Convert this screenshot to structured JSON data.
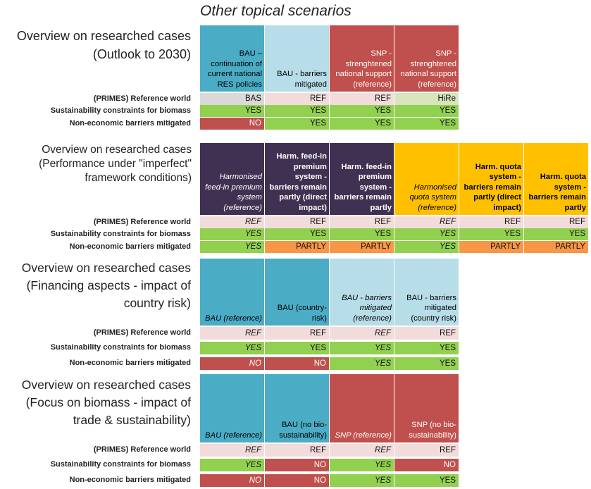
{
  "title": "Other topical scenarios",
  "colors": {
    "teal": "#4bacc6",
    "lightblue": "#b7dde8",
    "red": "#c0504d",
    "purple": "#403152",
    "orange": "#ffc000",
    "pink": "#f2dcdb",
    "grey": "#d9d9d9",
    "lightgreen": "#d7e4bc",
    "green": "#92d050",
    "darkorange": "#f79646"
  },
  "row_labels": {
    "ref": "(PRIMES) Reference world",
    "sust": "Sustainability constraints for biomass",
    "barr": "Non-economic barriers mitigated"
  },
  "sections": [
    {
      "title": "Overview on researched cases (Outlook to 2030)",
      "headers": [
        {
          "text": "BAU – continuation of current national RES policies",
          "color": "teal"
        },
        {
          "text": "BAU - barriers mitigated",
          "color": "lightblue"
        },
        {
          "text": "SNP - strenghtened national support (reference)",
          "color": "red"
        },
        {
          "text": "SNP - strenghtened national support (reference)",
          "color": "red"
        }
      ],
      "ref": [
        {
          "v": "BAS",
          "c": "grey"
        },
        {
          "v": "REF",
          "c": "pink"
        },
        {
          "v": "REF",
          "c": "pink"
        },
        {
          "v": "HiRe",
          "c": "lightgreen"
        }
      ],
      "sust": [
        {
          "v": "YES",
          "c": "green"
        },
        {
          "v": "YES",
          "c": "green"
        },
        {
          "v": "YES",
          "c": "green"
        },
        {
          "v": "YES",
          "c": "green"
        }
      ],
      "barr": [
        {
          "v": "NO",
          "c": "red"
        },
        {
          "v": "YES",
          "c": "green"
        },
        {
          "v": "YES",
          "c": "green"
        },
        {
          "v": "YES",
          "c": "green"
        }
      ]
    },
    {
      "title": "Overview on researched cases (Performance under \"imperfect\" framework conditions)",
      "headers": [
        {
          "text": "Harmonised feed-in premium system (reference)",
          "color": "purple"
        },
        {
          "text": "Harm. feed-in premium system - barriers remain partly (direct impact)",
          "color": "purple"
        },
        {
          "text": "Harm. feed-in premium system - barriers remain partly",
          "color": "purple"
        },
        {
          "text": "Harmonised quota system (reference)",
          "color": "orange"
        },
        {
          "text": "Harm. quota system - barriers remain partly (direct impact)",
          "color": "orange"
        },
        {
          "text": "Harm. quota system - barriers remain partly",
          "color": "orange"
        }
      ],
      "ref": [
        {
          "v": "REF",
          "c": "pink"
        },
        {
          "v": "REF",
          "c": "pink"
        },
        {
          "v": "REF",
          "c": "pink"
        },
        {
          "v": "REF",
          "c": "pink"
        },
        {
          "v": "REF",
          "c": "pink"
        },
        {
          "v": "REF",
          "c": "pink"
        }
      ],
      "sust": [
        {
          "v": "YES",
          "c": "green"
        },
        {
          "v": "YES",
          "c": "green"
        },
        {
          "v": "YES",
          "c": "green"
        },
        {
          "v": "YES",
          "c": "green"
        },
        {
          "v": "YES",
          "c": "green"
        },
        {
          "v": "YES",
          "c": "green"
        }
      ],
      "barr": [
        {
          "v": "YES",
          "c": "green"
        },
        {
          "v": "PARTLY",
          "c": "darkorange"
        },
        {
          "v": "PARTLY",
          "c": "darkorange"
        },
        {
          "v": "YES",
          "c": "green"
        },
        {
          "v": "PARTLY",
          "c": "darkorange"
        },
        {
          "v": "PARTLY",
          "c": "darkorange"
        }
      ]
    },
    {
      "title": "Overview on researched cases (Financing aspects - impact of country risk)",
      "headers": [
        {
          "text": "BAU (reference)",
          "color": "teal"
        },
        {
          "text": "BAU (country-risk)",
          "color": "teal"
        },
        {
          "text": "BAU - barriers mitigated (reference)",
          "color": "lightblue"
        },
        {
          "text": "BAU - barriers mitigated (country risk)",
          "color": "lightblue"
        }
      ],
      "ref": [
        {
          "v": "REF",
          "c": "pink"
        },
        {
          "v": "REF",
          "c": "pink"
        },
        {
          "v": "REF",
          "c": "pink"
        },
        {
          "v": "REF",
          "c": "pink"
        }
      ],
      "sust": [
        {
          "v": "YES",
          "c": "green"
        },
        {
          "v": "YES",
          "c": "green"
        },
        {
          "v": "YES",
          "c": "green"
        },
        {
          "v": "YES",
          "c": "green"
        }
      ],
      "barr": [
        {
          "v": "NO",
          "c": "red"
        },
        {
          "v": "NO",
          "c": "red"
        },
        {
          "v": "YES",
          "c": "green"
        },
        {
          "v": "YES",
          "c": "green"
        }
      ]
    },
    {
      "title": "Overview on researched cases (Focus on biomass - impact of trade & sustainability)",
      "headers": [
        {
          "text": "BAU (reference)",
          "color": "teal"
        },
        {
          "text": "BAU (no bio-sustainability)",
          "color": "teal"
        },
        {
          "text": "SNP (reference)",
          "color": "red"
        },
        {
          "text": "SNP (no bio-sustainability)",
          "color": "red"
        }
      ],
      "ref": [
        {
          "v": "REF",
          "c": "pink"
        },
        {
          "v": "REF",
          "c": "pink"
        },
        {
          "v": "REF",
          "c": "pink"
        },
        {
          "v": "REF",
          "c": "pink"
        }
      ],
      "sust": [
        {
          "v": "YES",
          "c": "green"
        },
        {
          "v": "NO",
          "c": "red"
        },
        {
          "v": "YES",
          "c": "green"
        },
        {
          "v": "NO",
          "c": "red"
        }
      ],
      "barr": [
        {
          "v": "NO",
          "c": "red"
        },
        {
          "v": "NO",
          "c": "red"
        },
        {
          "v": "YES",
          "c": "green"
        },
        {
          "v": "YES",
          "c": "green"
        }
      ]
    }
  ]
}
